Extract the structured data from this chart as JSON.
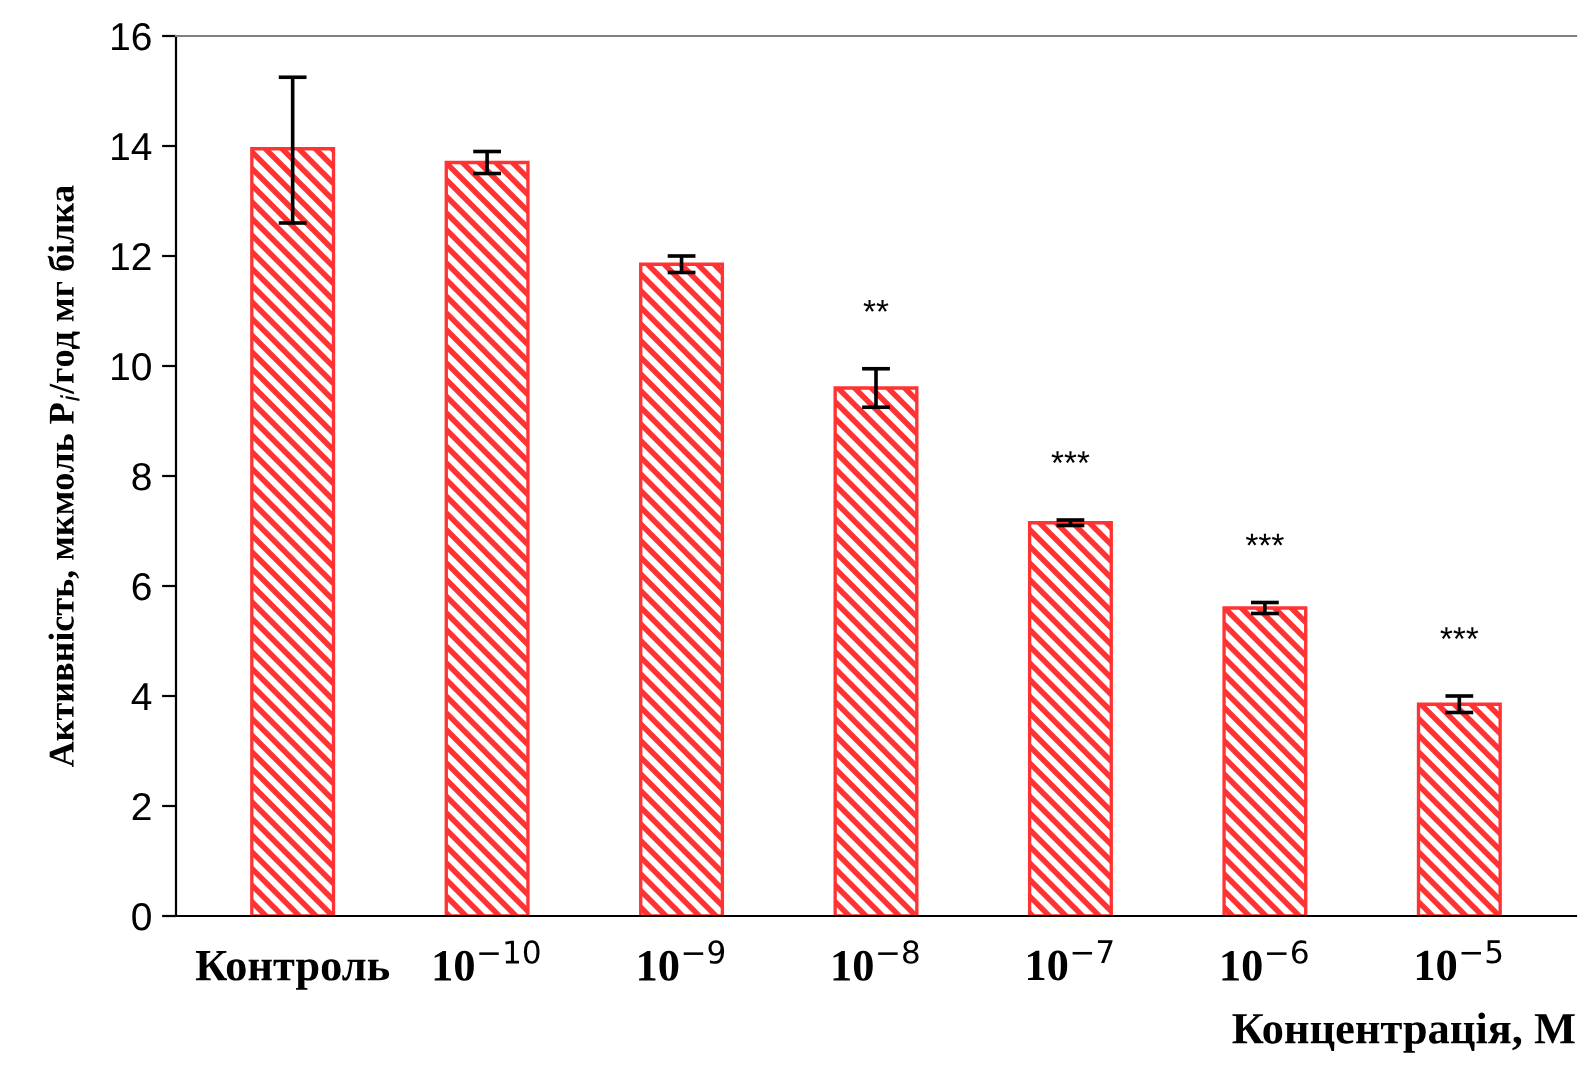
{
  "chart_data": {
    "type": "bar",
    "xlabel": "Концентрація, М",
    "ylabel": "Активність, мкмоль P$_{i}$/год мг білка",
    "categories": [
      "Контроль",
      "10$^{−10}$",
      "10$^{−9}$",
      "10$^{−8}$",
      "10$^{−7}$",
      "10$^{−6}$",
      "10$^{−5}$"
    ],
    "values": [
      13.95,
      13.7,
      11.85,
      9.6,
      7.15,
      5.6,
      3.85
    ],
    "errors": [
      [
        12.6,
        15.25
      ],
      0.2,
      0.15,
      0.35,
      0.05,
      0.1,
      0.15
    ],
    "color": "#ff3333",
    "ylim": [
      0,
      16
    ],
    "yticks": [
      0,
      2,
      4,
      6,
      8,
      10,
      12,
      14,
      16
    ],
    "annotations": [
      "**",
      "***",
      "***",
      "***"
    ]
  }
}
